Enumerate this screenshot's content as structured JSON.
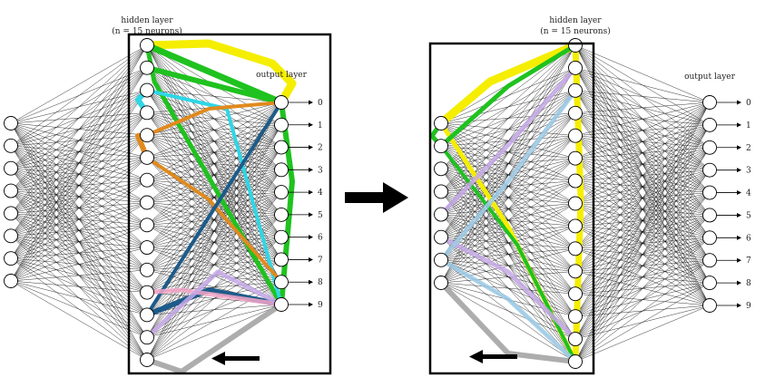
{
  "left_diagram": {
    "hidden_title": "hidden layer",
    "hidden_subtitle": "(n = 15 neurons)",
    "output_title": "output layer",
    "output_labels": [
      "0",
      "1",
      "2",
      "3",
      "4",
      "5",
      "6",
      "7",
      "8",
      "9"
    ]
  },
  "right_diagram": {
    "hidden_title": "hidden layer",
    "hidden_subtitle": "(n = 15 neurons)",
    "output_title": "output layer",
    "output_labels": [
      "0",
      "1",
      "2",
      "3",
      "4",
      "5",
      "6",
      "7",
      "8",
      "9"
    ]
  },
  "colors": {
    "yellow": "#f5ee00",
    "green": "#1fc21f",
    "cyan": "#2fd6e6",
    "orange": "#e08a1e",
    "navy": "#1d5b8a",
    "pink": "#f4a6c8",
    "lavender": "#c6a8e8",
    "lightblue": "#9ccbe8",
    "gray": "#999999"
  },
  "arrow_icon": "right-arrow-icon",
  "left_pointer_icon": "left-arrow-icon"
}
